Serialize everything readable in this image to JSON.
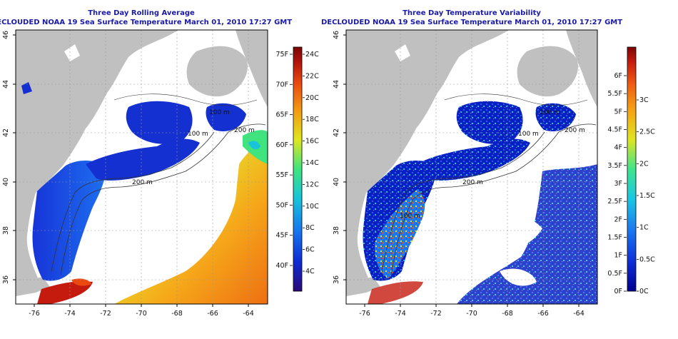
{
  "panels": [
    {
      "id": "left",
      "title_line1": "Three Day Rolling Average",
      "title_line2": "DECLOUDED NOAA 19 Sea Surface Temperature March 01, 2010 17:27 GMT",
      "colorbar": {
        "colors": [
          "#2a0a78",
          "#0d2bd4",
          "#1777ee",
          "#17c4d9",
          "#3fe47f",
          "#dfe61f",
          "#f39a14",
          "#ea4a10",
          "#b1120c",
          "#7a0505"
        ],
        "left_labels": [
          "75F",
          "70F",
          "65F",
          "60F",
          "55F",
          "50F",
          "45F",
          "40F"
        ],
        "right_labels": [
          "24C",
          "22C",
          "20C",
          "18C",
          "16C",
          "14C",
          "12C",
          "10C",
          "8C",
          "6C",
          "4C"
        ]
      }
    },
    {
      "id": "right",
      "title_line1": "Three Day Temperature Variability",
      "title_line2": "DECLOUDED NOAA 19 Sea Surface Temperature March 01, 2010 17:27 GMT",
      "colorbar": {
        "colors": [
          "#00008f",
          "#0d2ed6",
          "#1b78f0",
          "#19c8e3",
          "#40e48c",
          "#dfe522",
          "#f5a414",
          "#ef5a12",
          "#c51a0e",
          "#7c0505"
        ],
        "left_labels": [
          "6F",
          "5.5F",
          "5F",
          "4.5F",
          "4F",
          "3.5F",
          "3F",
          "2.5F",
          "2F",
          "1.5F",
          "1F",
          "0.5F",
          "0F"
        ],
        "right_labels": [
          "3C",
          "2.5C",
          "2C",
          "1.5C",
          "1C",
          "0.5C",
          "0C"
        ]
      }
    }
  ],
  "x_ticks": [
    "-76",
    "-74",
    "-72",
    "-70",
    "-68",
    "-66",
    "-64"
  ],
  "y_ticks": [
    "46",
    "44",
    "42",
    "40",
    "38",
    "36"
  ],
  "isobath_labels": [
    "100 m",
    "100 m",
    "200 m",
    "200 m",
    "100 m"
  ]
}
